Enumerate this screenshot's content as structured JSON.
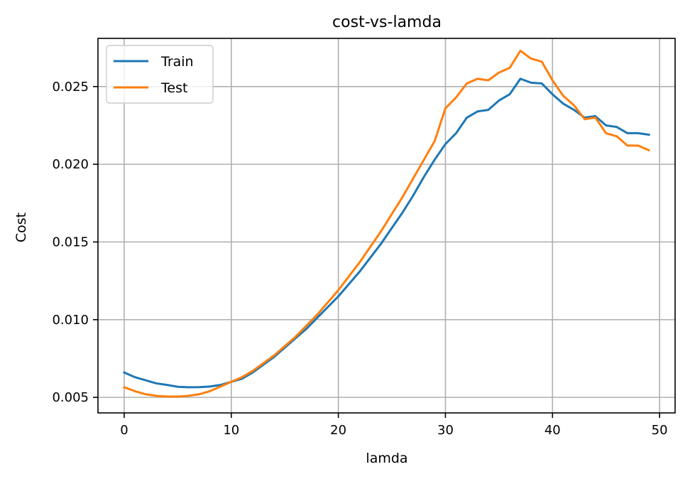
{
  "chart_data": {
    "type": "line",
    "title": "cost-vs-lamda",
    "xlabel": "lamda",
    "ylabel": "Cost",
    "xlim": [
      -2.45,
      51.45
    ],
    "ylim": [
      0.004,
      0.0281
    ],
    "xticks": [
      0,
      10,
      20,
      30,
      40,
      50
    ],
    "xtick_labels": [
      "0",
      "10",
      "20",
      "30",
      "40",
      "50"
    ],
    "yticks": [
      0.005,
      0.01,
      0.015,
      0.02,
      0.025
    ],
    "ytick_labels": [
      "0.005",
      "0.010",
      "0.015",
      "0.020",
      "0.025"
    ],
    "grid": true,
    "legend_position": "top-left",
    "x": [
      0,
      1,
      2,
      3,
      4,
      5,
      6,
      7,
      8,
      9,
      10,
      11,
      12,
      13,
      14,
      15,
      16,
      17,
      18,
      19,
      20,
      21,
      22,
      23,
      24,
      25,
      26,
      27,
      28,
      29,
      30,
      31,
      32,
      33,
      34,
      35,
      36,
      37,
      38,
      39,
      40,
      41,
      42,
      43,
      44,
      45,
      46,
      47,
      48,
      49
    ],
    "series": [
      {
        "name": "Train",
        "color": "#1f77b4",
        "values": [
          0.0066,
          0.0063,
          0.0061,
          0.0059,
          0.0058,
          0.00568,
          0.00565,
          0.00566,
          0.0057,
          0.0058,
          0.006,
          0.0062,
          0.0066,
          0.0071,
          0.0076,
          0.0082,
          0.0088,
          0.0094,
          0.0101,
          0.0108,
          0.0115,
          0.0123,
          0.0131,
          0.014,
          0.0149,
          0.0159,
          0.0169,
          0.018,
          0.0192,
          0.0203,
          0.0213,
          0.022,
          0.023,
          0.0234,
          0.0235,
          0.0241,
          0.0245,
          0.0255,
          0.02525,
          0.0252,
          0.0245,
          0.0239,
          0.0235,
          0.023,
          0.0231,
          0.0225,
          0.0224,
          0.022,
          0.022,
          0.0219
        ]
      },
      {
        "name": "Test",
        "color": "#ff7f0e",
        "values": [
          0.00565,
          0.0054,
          0.0052,
          0.0051,
          0.00505,
          0.00505,
          0.0051,
          0.0052,
          0.0054,
          0.0057,
          0.006,
          0.0063,
          0.0067,
          0.0072,
          0.0077,
          0.0083,
          0.0089,
          0.0096,
          0.0103,
          0.0111,
          0.0119,
          0.0128,
          0.0137,
          0.0147,
          0.0157,
          0.0168,
          0.0179,
          0.0191,
          0.0203,
          0.0215,
          0.0236,
          0.0243,
          0.0252,
          0.0255,
          0.0254,
          0.0259,
          0.0262,
          0.0273,
          0.0268,
          0.0266,
          0.0254,
          0.0244,
          0.0238,
          0.0229,
          0.023,
          0.022,
          0.0218,
          0.0212,
          0.0212,
          0.0209
        ]
      }
    ]
  }
}
